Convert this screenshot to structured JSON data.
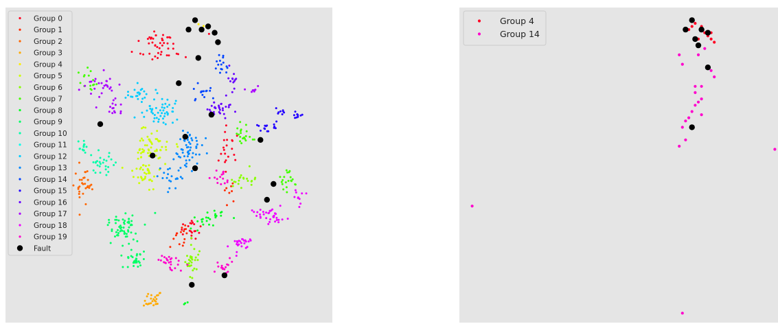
{
  "chart_data": [
    {
      "type": "scatter",
      "title": "",
      "xlabel": "",
      "ylabel": "",
      "grid": false,
      "legend_position": "top-left",
      "background": "#e5e5e5",
      "fault": {
        "name": "Fault",
        "color": "#000000",
        "points": [
          [
            0.58,
            0.96
          ],
          [
            0.6,
            0.93
          ],
          [
            0.62,
            0.94
          ],
          [
            0.64,
            0.92
          ],
          [
            0.65,
            0.89
          ],
          [
            0.56,
            0.93
          ],
          [
            0.59,
            0.84
          ],
          [
            0.53,
            0.76
          ],
          [
            0.63,
            0.66
          ],
          [
            0.29,
            0.63
          ],
          [
            0.55,
            0.59
          ],
          [
            0.45,
            0.53
          ],
          [
            0.58,
            0.49
          ],
          [
            0.78,
            0.58
          ],
          [
            0.82,
            0.44
          ],
          [
            0.8,
            0.39
          ],
          [
            0.67,
            0.15
          ],
          [
            0.57,
            0.12
          ]
        ]
      },
      "series": [
        {
          "name": "Group 0",
          "color": "#ff0022",
          "clusters": [
            [
              0.47,
              0.88,
              0.07,
              0.05,
              45
            ],
            [
              0.68,
              0.55,
              0.03,
              0.06,
              20
            ],
            [
              0.56,
              0.3,
              0.04,
              0.03,
              20
            ]
          ]
        },
        {
          "name": "Group 1",
          "color": "#ff2a00",
          "clusters": [
            [
              0.54,
              0.27,
              0.03,
              0.03,
              15
            ],
            [
              0.68,
              0.42,
              0.02,
              0.03,
              8
            ]
          ]
        },
        {
          "name": "Group 2",
          "color": "#ff6600",
          "clusters": [
            [
              0.24,
              0.43,
              0.03,
              0.06,
              30
            ]
          ]
        },
        {
          "name": "Group 3",
          "color": "#ffaa00",
          "clusters": [
            [
              0.45,
              0.07,
              0.025,
              0.03,
              25
            ]
          ]
        },
        {
          "name": "Group 4",
          "color": "#ffee00",
          "clusters": [
            [
              0.6,
              0.94,
              0.02,
              0.01,
              3
            ]
          ]
        },
        {
          "name": "Group 5",
          "color": "#ccff00",
          "clusters": [
            [
              0.44,
              0.55,
              0.06,
              0.06,
              60
            ],
            [
              0.42,
              0.47,
              0.05,
              0.04,
              30
            ]
          ]
        },
        {
          "name": "Group 6",
          "color": "#88ff00",
          "clusters": [
            [
              0.57,
              0.2,
              0.025,
              0.05,
              30
            ],
            [
              0.72,
              0.45,
              0.04,
              0.03,
              20
            ]
          ]
        },
        {
          "name": "Group 7",
          "color": "#44ff00",
          "clusters": [
            [
              0.73,
              0.6,
              0.03,
              0.04,
              20
            ],
            [
              0.87,
              0.45,
              0.04,
              0.04,
              20
            ],
            [
              0.25,
              0.77,
              0.03,
              0.05,
              15
            ]
          ]
        },
        {
          "name": "Group 8",
          "color": "#00ff22",
          "clusters": [
            [
              0.62,
              0.33,
              0.05,
              0.03,
              25
            ],
            [
              0.55,
              0.06,
              0.01,
              0.01,
              3
            ]
          ]
        },
        {
          "name": "Group 9",
          "color": "#00ff66",
          "clusters": [
            [
              0.36,
              0.3,
              0.05,
              0.05,
              60
            ],
            [
              0.4,
              0.2,
              0.04,
              0.03,
              30
            ]
          ]
        },
        {
          "name": "Group 10",
          "color": "#00ffaa",
          "clusters": [
            [
              0.3,
              0.5,
              0.04,
              0.03,
              25
            ],
            [
              0.24,
              0.55,
              0.03,
              0.03,
              15
            ]
          ]
        },
        {
          "name": "Group 11",
          "color": "#00ffee",
          "clusters": [
            [
              0.1,
              0.68,
              0.03,
              0.02,
              20
            ],
            [
              0.08,
              0.6,
              0.02,
              0.02,
              10
            ]
          ]
        },
        {
          "name": "Group 12",
          "color": "#00ccff",
          "clusters": [
            [
              0.47,
              0.67,
              0.06,
              0.05,
              50
            ],
            [
              0.41,
              0.73,
              0.04,
              0.03,
              20
            ]
          ]
        },
        {
          "name": "Group 13",
          "color": "#0088ff",
          "clusters": [
            [
              0.56,
              0.55,
              0.05,
              0.07,
              55
            ],
            [
              0.5,
              0.45,
              0.04,
              0.04,
              20
            ]
          ]
        },
        {
          "name": "Group 14",
          "color": "#0044ff",
          "clusters": [
            [
              0.66,
              0.82,
              0.02,
              0.04,
              15
            ],
            [
              0.6,
              0.73,
              0.03,
              0.03,
              15
            ]
          ]
        },
        {
          "name": "Group 15",
          "color": "#2200ff",
          "clusters": [
            [
              0.8,
              0.62,
              0.03,
              0.02,
              15
            ],
            [
              0.89,
              0.66,
              0.02,
              0.01,
              10
            ],
            [
              0.84,
              0.67,
              0.02,
              0.01,
              8
            ]
          ]
        },
        {
          "name": "Group 16",
          "color": "#6600ff",
          "clusters": [
            [
              0.66,
              0.68,
              0.04,
              0.03,
              30
            ],
            [
              0.69,
              0.76,
              0.02,
              0.04,
              12
            ]
          ]
        },
        {
          "name": "Group 17",
          "color": "#aa00ff",
          "clusters": [
            [
              0.3,
              0.75,
              0.06,
              0.04,
              25
            ],
            [
              0.33,
              0.68,
              0.03,
              0.03,
              15
            ],
            [
              0.75,
              0.74,
              0.02,
              0.02,
              8
            ]
          ]
        },
        {
          "name": "Group 18",
          "color": "#ee00ff",
          "clusters": [
            [
              0.81,
              0.34,
              0.05,
              0.03,
              35
            ],
            [
              0.72,
              0.26,
              0.04,
              0.04,
              25
            ],
            [
              0.9,
              0.4,
              0.02,
              0.04,
              10
            ]
          ]
        },
        {
          "name": "Group 19",
          "color": "#ff00cc",
          "clusters": [
            [
              0.5,
              0.19,
              0.04,
              0.03,
              25
            ],
            [
              0.67,
              0.18,
              0.03,
              0.02,
              15
            ],
            [
              0.66,
              0.46,
              0.03,
              0.03,
              15
            ]
          ]
        }
      ]
    },
    {
      "type": "scatter",
      "title": "",
      "xlabel": "",
      "ylabel": "",
      "grid": false,
      "legend_position": "top-left",
      "background": "#e5e5e5",
      "fault": {
        "name": "Fault",
        "color": "#000000",
        "points": [
          [
            0.73,
            0.96
          ],
          [
            0.71,
            0.93
          ],
          [
            0.76,
            0.93
          ],
          [
            0.74,
            0.9
          ],
          [
            0.78,
            0.92
          ],
          [
            0.75,
            0.88
          ],
          [
            0.78,
            0.81
          ],
          [
            0.73,
            0.62
          ]
        ]
      },
      "series": [
        {
          "name": "Group 4",
          "color": "#ff0022",
          "points": [
            [
              0.74,
              0.95
            ],
            [
              0.72,
              0.93
            ],
            [
              0.76,
              0.94
            ],
            [
              0.79,
              0.92
            ],
            [
              0.77,
              0.92
            ],
            [
              0.79,
              0.9
            ],
            [
              0.8,
              0.89
            ],
            [
              0.75,
              0.9
            ],
            [
              0.73,
              0.94
            ],
            [
              0.78,
              0.91
            ]
          ]
        },
        {
          "name": "Group 14",
          "color": "#ff00cc",
          "points": [
            [
              0.69,
              0.85
            ],
            [
              0.7,
              0.82
            ],
            [
              0.79,
              0.8
            ],
            [
              0.8,
              0.78
            ],
            [
              0.77,
              0.87
            ],
            [
              0.75,
              0.85
            ],
            [
              0.74,
              0.73
            ],
            [
              0.76,
              0.71
            ],
            [
              0.74,
              0.69
            ],
            [
              0.75,
              0.7
            ],
            [
              0.76,
              0.66
            ],
            [
              0.73,
              0.67
            ],
            [
              0.72,
              0.65
            ],
            [
              0.7,
              0.62
            ],
            [
              0.71,
              0.64
            ],
            [
              0.69,
              0.56
            ],
            [
              0.74,
              0.75
            ],
            [
              0.76,
              0.75
            ],
            [
              0.71,
              0.58
            ],
            [
              0.99,
              0.55
            ],
            [
              0.04,
              0.37
            ],
            [
              0.7,
              0.03
            ]
          ]
        }
      ]
    }
  ]
}
